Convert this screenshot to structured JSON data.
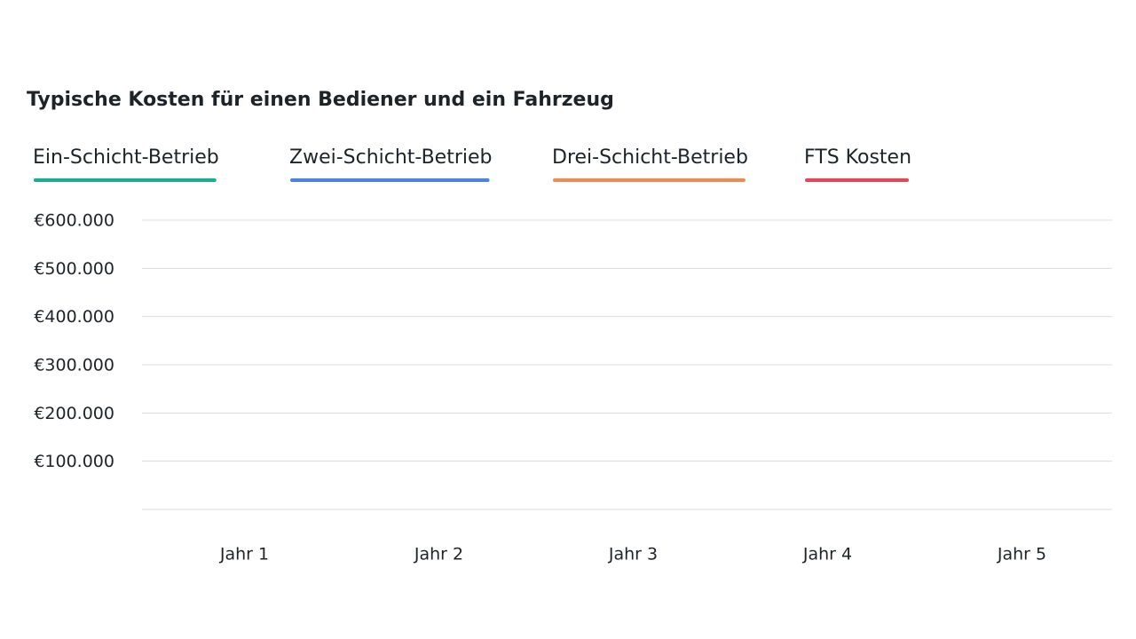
{
  "chart_data": {
    "type": "line",
    "title": "Typische Kosten für einen Bediener und ein Fahrzeug",
    "categories": [
      "Jahr 1",
      "Jahr 2",
      "Jahr 3",
      "Jahr 4",
      "Jahr 5"
    ],
    "series": [
      {
        "name": "Ein-Schicht-Betrieb",
        "color": "#17b08e"
      },
      {
        "name": "Zwei-Schicht-Betrieb",
        "color": "#4a80f0"
      },
      {
        "name": "Drei-Schicht-Betrieb",
        "color": "#f08a4f"
      },
      {
        "name": "FTS Kosten",
        "color": "#ef4256"
      }
    ],
    "ylim": [
      0,
      600000
    ],
    "yticks": [
      {
        "value": 100000,
        "label": "€100.000"
      },
      {
        "value": 200000,
        "label": "€200.000"
      },
      {
        "value": 300000,
        "label": "€300.000"
      },
      {
        "value": 400000,
        "label": "€400.000"
      },
      {
        "value": 500000,
        "label": "€500.000"
      },
      {
        "value": 600000,
        "label": "€600.000"
      }
    ],
    "grid": true
  }
}
